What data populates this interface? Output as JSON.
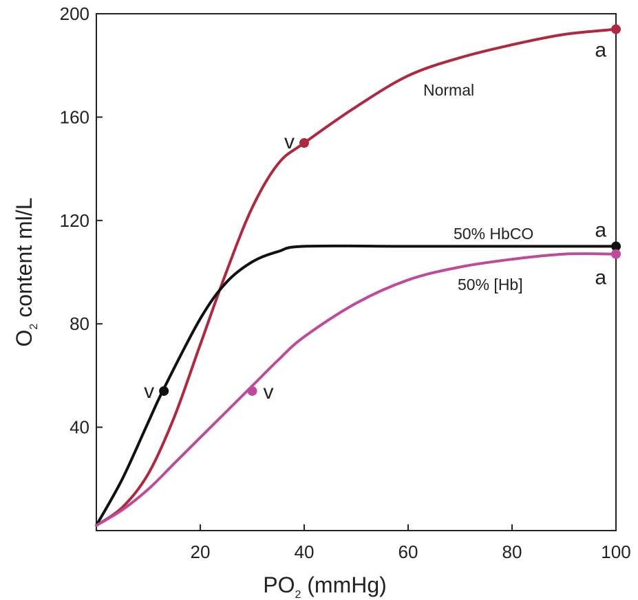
{
  "chart_data": {
    "type": "line",
    "xlabel": {
      "main": "PO",
      "sub": "2",
      "rest": " (mmHg)"
    },
    "ylabel": {
      "main": "O",
      "sub": "2",
      "rest": " content ml/L"
    },
    "xlim": [
      0,
      100
    ],
    "ylim": [
      0,
      200
    ],
    "xticks": [
      20,
      40,
      60,
      80,
      100
    ],
    "yticks": [
      40,
      80,
      120,
      160,
      200
    ],
    "grid": false,
    "series": [
      {
        "name": "Normal",
        "color": "#b0283e",
        "points": [
          [
            0,
            2
          ],
          [
            5,
            9
          ],
          [
            10,
            22
          ],
          [
            15,
            44
          ],
          [
            20,
            72
          ],
          [
            25,
            100
          ],
          [
            30,
            125
          ],
          [
            35,
            142
          ],
          [
            40,
            150
          ],
          [
            50,
            164
          ],
          [
            60,
            176
          ],
          [
            70,
            183
          ],
          [
            80,
            188
          ],
          [
            90,
            192
          ],
          [
            100,
            194
          ]
        ],
        "markers": [
          {
            "x": 40,
            "y": 150,
            "label": "v"
          },
          {
            "x": 100,
            "y": 194,
            "label": "a"
          }
        ]
      },
      {
        "name": "50% HbCO",
        "color": "#111111",
        "points": [
          [
            0,
            2
          ],
          [
            5,
            20
          ],
          [
            10,
            42
          ],
          [
            13,
            55
          ],
          [
            20,
            82
          ],
          [
            25,
            96
          ],
          [
            30,
            104
          ],
          [
            35,
            108
          ],
          [
            40,
            110
          ],
          [
            60,
            110
          ],
          [
            80,
            110
          ],
          [
            100,
            110
          ]
        ],
        "markers": [
          {
            "x": 13,
            "y": 54,
            "label": "v"
          },
          {
            "x": 100,
            "y": 110,
            "label": "a"
          }
        ]
      },
      {
        "name": "50% [Hb]",
        "color": "#c04a9a",
        "points": [
          [
            0,
            2
          ],
          [
            5,
            8
          ],
          [
            10,
            16
          ],
          [
            15,
            26
          ],
          [
            20,
            36
          ],
          [
            25,
            46
          ],
          [
            30,
            56
          ],
          [
            35,
            66
          ],
          [
            40,
            75
          ],
          [
            50,
            88
          ],
          [
            60,
            97
          ],
          [
            70,
            102
          ],
          [
            80,
            105
          ],
          [
            90,
            107
          ],
          [
            100,
            107
          ]
        ],
        "markers": [
          {
            "x": 30,
            "y": 54,
            "label": "v"
          },
          {
            "x": 100,
            "y": 107,
            "label": "a"
          }
        ]
      }
    ]
  }
}
